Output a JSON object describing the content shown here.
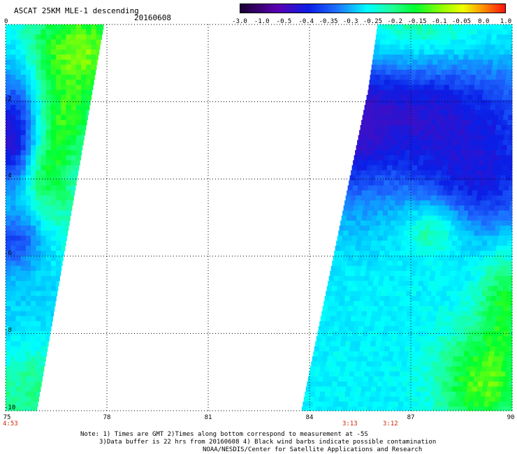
{
  "title": "ASCAT 25KM MLE-1 descending",
  "date": "20160608",
  "colorbar": {
    "labels": [
      "-3.0",
      "-1.0",
      "-0.5",
      "-0.4",
      "-0.35",
      "-0.3",
      "-0.25",
      "-0.2",
      "-0.15",
      "-0.1",
      "-0.05",
      "0.0",
      "1.0"
    ]
  },
  "axes": {
    "x_ticks": [
      "75",
      "78",
      "81",
      "84",
      "87",
      "90"
    ],
    "y_ticks": [
      "0",
      "-2",
      "-4",
      "-6",
      "-8",
      "-10"
    ],
    "lon_range": [
      75,
      90
    ],
    "lat_range": [
      -10,
      0
    ],
    "grid": "dotted"
  },
  "pass_times": [
    "4:53",
    "3:13",
    "3:12"
  ],
  "notes": [
    "Note: 1) Times are GMT 2)Times along bottom correspond to measurement at -5S",
    "3)Data buffer is 22 hrs from 20160608 4) Black wind barbs indicate possible contamination",
    "NOAA/NESDIS/Center for Satellite Applications and Research"
  ],
  "colors": {
    "dark": "#1a0033",
    "purple": "#5a00b0",
    "blue": "#0a1ee6",
    "mid_blue": "#1e6cff",
    "cyan": "#00ffff",
    "green": "#00ff30",
    "yellow": "#f0ff00",
    "orange": "#ff8c00",
    "red": "#ff1010"
  },
  "chart_data": {
    "type": "heatmap",
    "title": "ASCAT 25KM MLE-1 descending",
    "xlim": [
      75,
      90
    ],
    "ylim": [
      -10,
      0
    ],
    "swaths": [
      {
        "region": "west swath",
        "lon_range": [
          75,
          77.9
        ],
        "dominant_values": "-0.35 to -0.15",
        "max_value": -0.05
      },
      {
        "region": "east swath",
        "lon_range": [
          84,
          90
        ],
        "dominant_values": "-0.5 to -0.15",
        "max_value": -0.1
      }
    ]
  }
}
